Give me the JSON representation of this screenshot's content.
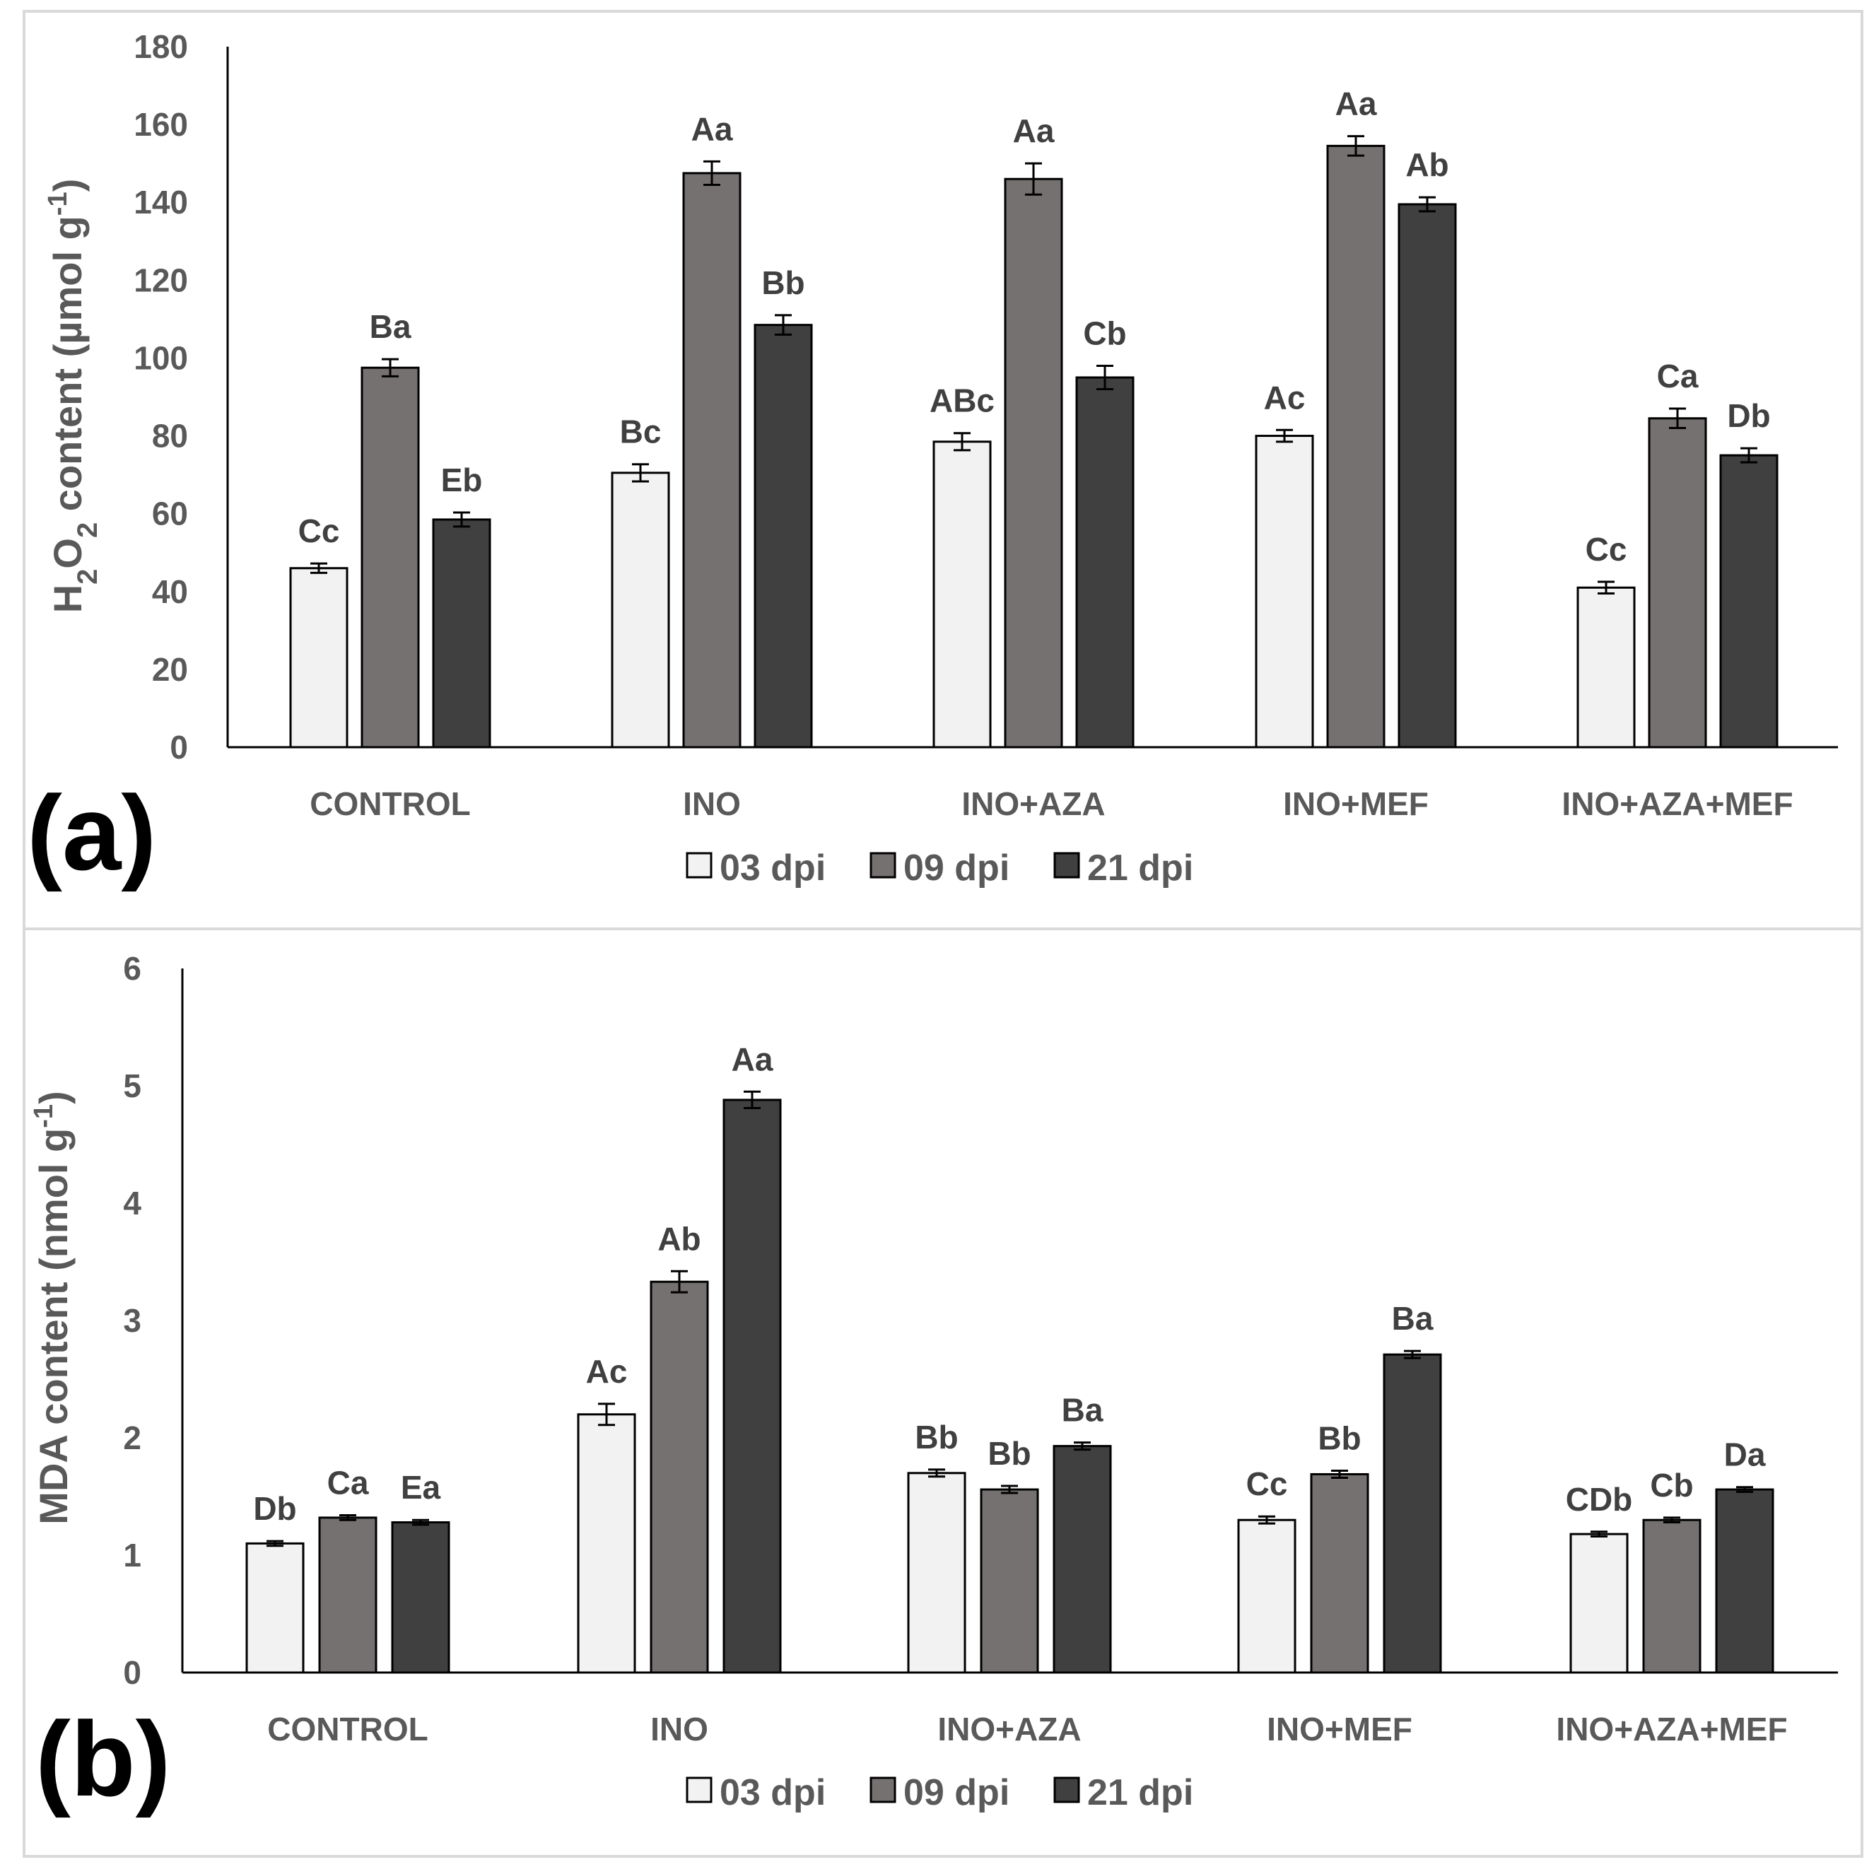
{
  "colors": {
    "series": [
      "#f2f2f2",
      "#767171",
      "#404040"
    ],
    "axis": "#000000",
    "text": "#595959",
    "label": "#404040",
    "frame": "#d9d9d9"
  },
  "chart_data": [
    {
      "type": "bar",
      "panel": "(a)",
      "ylabel": {
        "prefix": "H",
        "sub1": "2",
        "mid": "O",
        "sub2": "2",
        "suffix": " content (µmol g",
        "sup": "-1",
        "end": ")"
      },
      "ylim": [
        0,
        180
      ],
      "yticks": [
        0,
        20,
        40,
        60,
        80,
        100,
        120,
        140,
        160,
        180
      ],
      "categories": [
        "CONTROL",
        "INO",
        "INO+AZA",
        "INO+MEF",
        "INO+AZA+MEF"
      ],
      "series": [
        {
          "name": "03 dpi",
          "values": [
            46,
            70.5,
            78.5,
            80,
            41
          ],
          "errors": [
            1.2,
            2.2,
            2.2,
            1.5,
            1.5
          ],
          "labels": [
            "Cc",
            "Bc",
            "ABc",
            "Ac",
            "Cc"
          ]
        },
        {
          "name": "09 dpi",
          "values": [
            97.5,
            147.5,
            146,
            154.5,
            84.5
          ],
          "errors": [
            2.2,
            3.0,
            4.0,
            2.5,
            2.5
          ],
          "labels": [
            "Ba",
            "Aa",
            "Aa",
            "Aa",
            "Ca"
          ]
        },
        {
          "name": "21 dpi",
          "values": [
            58.5,
            108.5,
            95,
            139.5,
            75
          ],
          "errors": [
            1.8,
            2.5,
            3.0,
            1.8,
            1.8
          ],
          "labels": [
            "Eb",
            "Bb",
            "Cb",
            "Ab",
            "Db"
          ]
        }
      ],
      "legend": [
        "03 dpi",
        "09 dpi",
        "21 dpi"
      ]
    },
    {
      "type": "bar",
      "panel": "(b)",
      "ylabel": {
        "text": "MDA content (nmol g",
        "sup": "-1",
        "end": ")"
      },
      "ylim": [
        0,
        6
      ],
      "yticks": [
        0,
        1,
        2,
        3,
        4,
        5,
        6
      ],
      "categories": [
        "CONTROL",
        "INO",
        "INO+AZA",
        "INO+MEF",
        "INO+AZA+MEF"
      ],
      "series": [
        {
          "name": "03 dpi",
          "values": [
            1.1,
            2.2,
            1.7,
            1.3,
            1.18
          ],
          "errors": [
            0.02,
            0.09,
            0.03,
            0.03,
            0.02
          ],
          "labels": [
            "Db",
            "Ac",
            "Bb",
            "Cc",
            "CDb"
          ]
        },
        {
          "name": "09 dpi",
          "values": [
            1.32,
            3.33,
            1.56,
            1.69,
            1.3
          ],
          "errors": [
            0.02,
            0.09,
            0.03,
            0.03,
            0.02
          ],
          "labels": [
            "Ca",
            "Ab",
            "Bb",
            "Bb",
            "Cb"
          ]
        },
        {
          "name": "21 dpi",
          "values": [
            1.28,
            4.88,
            1.93,
            2.71,
            1.56
          ],
          "errors": [
            0.02,
            0.07,
            0.03,
            0.03,
            0.02
          ],
          "labels": [
            "Ea",
            "Aa",
            "Ba",
            "Ba",
            "Da"
          ]
        }
      ],
      "legend": [
        "03 dpi",
        "09 dpi",
        "21 dpi"
      ]
    }
  ]
}
